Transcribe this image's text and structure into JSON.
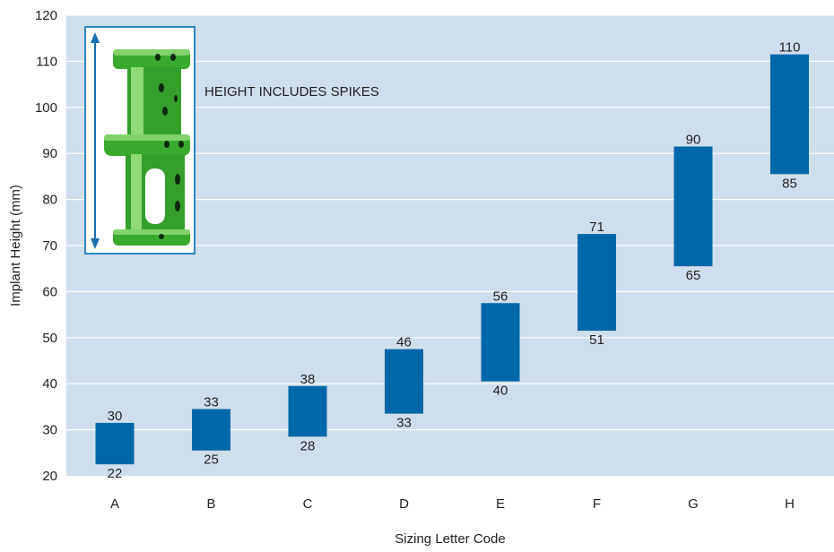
{
  "chart_data": {
    "type": "bar",
    "title": "",
    "xlabel": "Sizing Letter Code",
    "ylabel": "Implant Height (mm)",
    "ylim": [
      20,
      120
    ],
    "yticks": [
      20,
      30,
      40,
      50,
      60,
      70,
      80,
      90,
      100,
      110,
      120
    ],
    "categories": [
      "A",
      "B",
      "C",
      "D",
      "E",
      "F",
      "G",
      "H"
    ],
    "ranges": [
      {
        "low": 22,
        "high": 30
      },
      {
        "low": 25,
        "high": 33
      },
      {
        "low": 28,
        "high": 38
      },
      {
        "low": 33,
        "high": 46
      },
      {
        "low": 40,
        "high": 56
      },
      {
        "low": 51,
        "high": 71
      },
      {
        "low": 65,
        "high": 90
      },
      {
        "low": 85,
        "high": 110
      }
    ],
    "annotation": "HEIGHT INCLUDES SPIKES",
    "grid": true,
    "colors": {
      "plot_background": "#cfdeed",
      "bar": "#0068a8",
      "grid": "#ffffff",
      "inset_border": "#2f86c4",
      "arrow": "#1b6fae",
      "implant": "#3aaa2e"
    }
  }
}
